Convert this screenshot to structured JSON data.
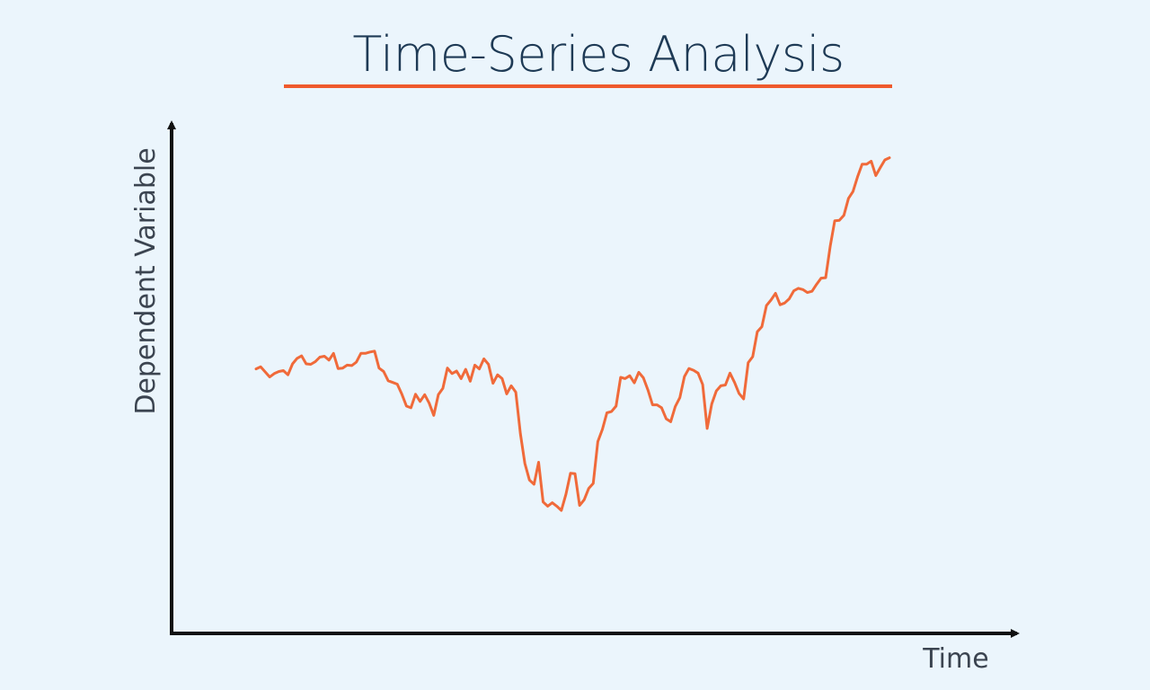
{
  "chart_data": {
    "type": "line",
    "title": "Time-Series Analysis",
    "xlabel": "Time",
    "ylabel": "Dependent Variable",
    "grid": false,
    "legend": "none",
    "ylim": [
      0,
      100
    ],
    "series": [
      {
        "values": [
          48.8,
          49.3,
          48.1,
          46.9,
          47.7,
          48.2,
          48.4,
          47.4,
          50.0,
          51.3,
          51.9,
          50.0,
          49.9,
          50.5,
          51.6,
          51.8,
          50.9,
          52.5,
          48.9,
          49.0,
          49.7,
          49.6,
          50.4,
          52.5,
          52.5,
          52.8,
          53.0,
          49.0,
          48.2,
          46.0,
          45.6,
          45.2,
          42.8,
          40.0,
          39.6,
          42.8,
          41.1,
          42.7,
          40.7,
          37.8,
          42.7,
          44.2,
          49.0,
          47.7,
          48.3,
          46.5,
          48.7,
          45.9,
          49.7,
          48.8,
          51.2,
          49.9,
          45.4,
          47.4,
          46.5,
          42.9,
          44.8,
          43.3,
          33.5,
          26.4,
          22.5,
          21.5,
          26.7,
          17.3,
          16.3,
          17.1,
          16.3,
          15.3,
          19.1,
          24.1,
          24.0,
          16.5,
          17.8,
          20.5,
          21.7,
          31.6,
          34.5,
          38.4,
          38.7,
          40.0,
          46.8,
          46.5,
          47.2,
          45.5,
          48.0,
          46.7,
          43.8,
          40.3,
          40.3,
          39.6,
          37.0,
          36.3,
          39.9,
          42.0,
          47.0,
          48.9,
          48.5,
          47.8,
          45.1,
          34.7,
          40.5,
          43.6,
          44.8,
          45.0,
          47.8,
          45.6,
          43.0,
          41.7,
          50.3,
          51.7,
          57.6,
          58.8,
          63.8,
          65.1,
          66.7,
          64.0,
          64.4,
          65.4,
          67.3,
          67.9,
          67.6,
          66.9,
          67.2,
          68.8,
          70.3,
          70.4,
          77.9,
          83.9,
          84.0,
          85.2,
          89.2,
          90.8,
          94.3,
          97.3,
          97.3,
          98.0,
          94.6,
          96.5,
          98.3,
          98.8
        ]
      }
    ]
  },
  "colors": {
    "background": "#ebf5fc",
    "title": "#1e3a55",
    "underline": "#ef5a2d",
    "line": "#f06a3a",
    "axis": "#111111",
    "label": "#3b4450"
  }
}
